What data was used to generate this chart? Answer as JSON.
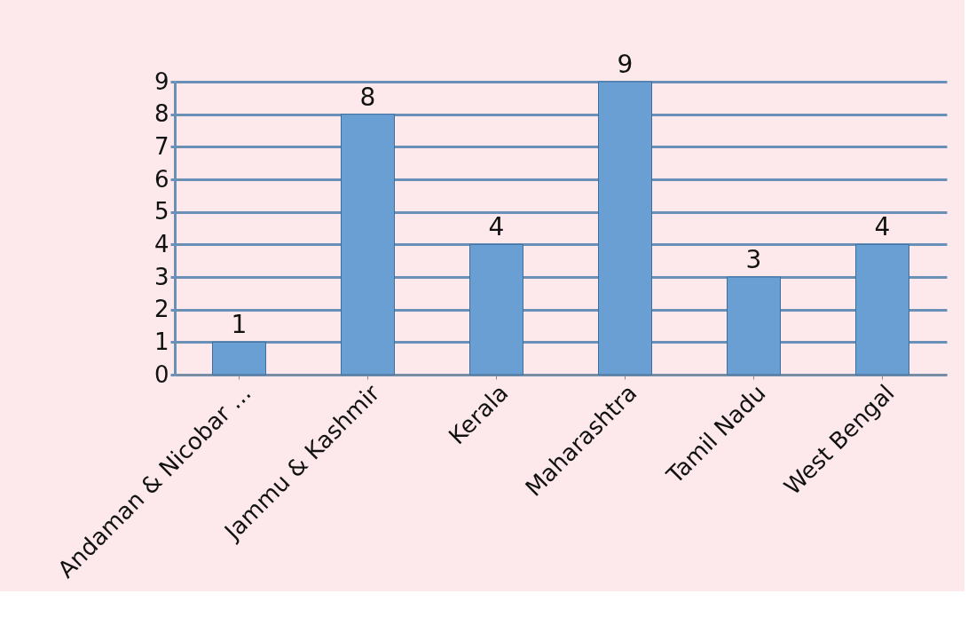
{
  "chart_data": {
    "type": "bar",
    "categories": [
      "Andaman & Nicobar ...",
      "Jammu & Kashmir",
      "Kerala",
      "Maharashtra",
      "Tamil Nadu",
      "West Bengal"
    ],
    "values": [
      1,
      8,
      4,
      9,
      3,
      4
    ],
    "color": "#6a9fd4",
    "ylim": [
      0,
      9
    ],
    "yticks": [
      0,
      1,
      2,
      3,
      4,
      5,
      6,
      7,
      8,
      9
    ],
    "grid": "y",
    "data_labels": true
  }
}
